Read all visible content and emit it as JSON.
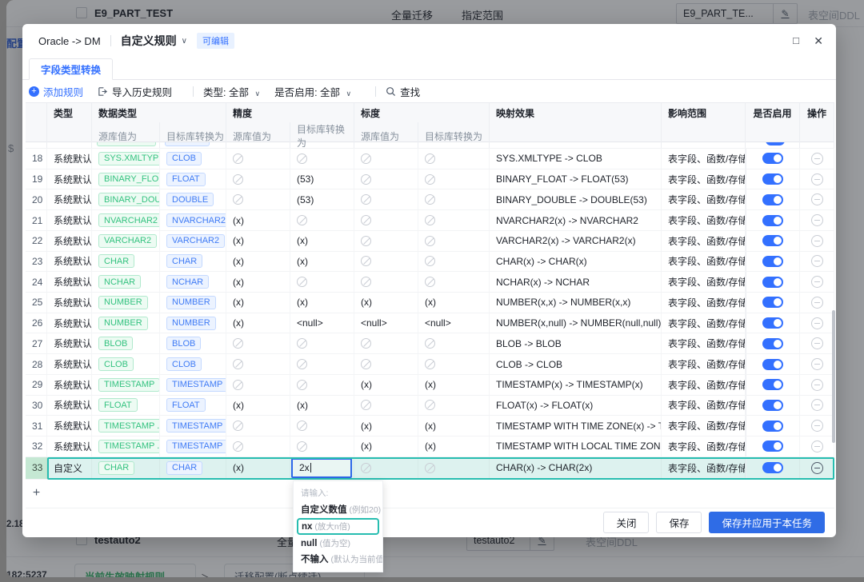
{
  "background": {
    "top_row": {
      "name": "E9_PART_TEST",
      "mode": "全量迁移",
      "range": "指定范围",
      "input_value": "E9_PART_TE...",
      "tablespace": "表空间DDL"
    },
    "left_edge": {
      "config": "配置",
      "icon": "$",
      "ip_partial": "2.182:",
      "ip_bottom": "182:5237"
    },
    "bottom_row": {
      "name": "testauto2",
      "mode": "全量迁移",
      "input_value": "testauto2",
      "tablespace": "表空间DDL"
    },
    "bottom_bar": {
      "active_rules": "当前生效映射规则",
      "caret": "＞",
      "secondary": "迁移配置(断点续迁)"
    }
  },
  "modal": {
    "source_target": "Oracle -> DM",
    "title": "自定义规则",
    "title_caret": "∨",
    "badge": "可编辑",
    "window": {
      "maximize": "□",
      "close": "✕"
    },
    "tab": "字段类型转换",
    "toolbar": {
      "add_rule": "添加规则",
      "import_history": "导入历史规则",
      "type_label": "类型: ",
      "type_value": "全部",
      "enabled_label": "是否启用: ",
      "enabled_value": "全部",
      "search": "查找",
      "caret": "∨"
    },
    "table": {
      "headers": {
        "type": "类型",
        "data_type": "数据类型",
        "precision": "精度",
        "scale": "标度",
        "effect": "映射效果",
        "scope": "影响范围",
        "enabled": "是否启用",
        "operation": "操作",
        "src_sub": "源库值为",
        "dst_sub": "目标库转换为"
      },
      "rows": [
        {
          "no": 18,
          "type": "系统默认",
          "src": "SYS.XMLTYPE",
          "dst": "CLOB",
          "prec_src": null,
          "prec_dst": null,
          "scale_src": null,
          "scale_dst": null,
          "effect": "SYS.XMLTYPE -> CLOB",
          "scope": "表字段、函数/存储过程",
          "enabled": true
        },
        {
          "no": 19,
          "type": "系统默认",
          "src": "BINARY_FLO...",
          "dst": "FLOAT",
          "prec_src": null,
          "prec_dst": "(53)",
          "scale_src": null,
          "scale_dst": null,
          "effect": "BINARY_FLOAT -> FLOAT(53)",
          "scope": "表字段、函数/存储过程",
          "enabled": true
        },
        {
          "no": 20,
          "type": "系统默认",
          "src": "BINARY_DOU...",
          "dst": "DOUBLE",
          "prec_src": null,
          "prec_dst": "(53)",
          "scale_src": null,
          "scale_dst": null,
          "effect": "BINARY_DOUBLE -> DOUBLE(53)",
          "scope": "表字段、函数/存储过程",
          "enabled": true
        },
        {
          "no": 21,
          "type": "系统默认",
          "src": "NVARCHAR2",
          "dst": "NVARCHAR2",
          "prec_src": "(x)",
          "prec_dst": null,
          "scale_src": null,
          "scale_dst": null,
          "effect": "NVARCHAR2(x) -> NVARCHAR2",
          "scope": "表字段、函数/存储过程",
          "enabled": true
        },
        {
          "no": 22,
          "type": "系统默认",
          "src": "VARCHAR2",
          "dst": "VARCHAR2",
          "prec_src": "(x)",
          "prec_dst": "(x)",
          "scale_src": null,
          "scale_dst": null,
          "effect": "VARCHAR2(x) -> VARCHAR2(x)",
          "scope": "表字段、函数/存储过程",
          "enabled": true
        },
        {
          "no": 23,
          "type": "系统默认",
          "src": "CHAR",
          "dst": "CHAR",
          "prec_src": "(x)",
          "prec_dst": "(x)",
          "scale_src": null,
          "scale_dst": null,
          "effect": "CHAR(x) -> CHAR(x)",
          "scope": "表字段、函数/存储过程",
          "enabled": true
        },
        {
          "no": 24,
          "type": "系统默认",
          "src": "NCHAR",
          "dst": "NCHAR",
          "prec_src": "(x)",
          "prec_dst": null,
          "scale_src": null,
          "scale_dst": null,
          "effect": "NCHAR(x) -> NCHAR",
          "scope": "表字段、函数/存储过程",
          "enabled": true
        },
        {
          "no": 25,
          "type": "系统默认",
          "src": "NUMBER",
          "dst": "NUMBER",
          "prec_src": "(x)",
          "prec_dst": "(x)",
          "scale_src": "(x)",
          "scale_dst": "(x)",
          "effect": "NUMBER(x,x) -> NUMBER(x,x)",
          "scope": "表字段、函数/存储过程",
          "enabled": true
        },
        {
          "no": 26,
          "type": "系统默认",
          "src": "NUMBER",
          "dst": "NUMBER",
          "prec_src": "(x)",
          "prec_dst": "<null>",
          "scale_src": "<null>",
          "scale_dst": "<null>",
          "effect": "NUMBER(x,null) -> NUMBER(null,null)",
          "scope": "表字段、函数/存储过程",
          "enabled": true
        },
        {
          "no": 27,
          "type": "系统默认",
          "src": "BLOB",
          "dst": "BLOB",
          "prec_src": null,
          "prec_dst": null,
          "scale_src": null,
          "scale_dst": null,
          "effect": "BLOB -> BLOB",
          "scope": "表字段、函数/存储过程",
          "enabled": true
        },
        {
          "no": 28,
          "type": "系统默认",
          "src": "CLOB",
          "dst": "CLOB",
          "prec_src": null,
          "prec_dst": null,
          "scale_src": null,
          "scale_dst": null,
          "effect": "CLOB -> CLOB",
          "scope": "表字段、函数/存储过程",
          "enabled": true
        },
        {
          "no": 29,
          "type": "系统默认",
          "src": "TIMESTAMP",
          "dst": "TIMESTAMP",
          "prec_src": null,
          "prec_dst": null,
          "scale_src": "(x)",
          "scale_dst": "(x)",
          "effect": "TIMESTAMP(x) -> TIMESTAMP(x)",
          "scope": "表字段、函数/存储过程",
          "enabled": true
        },
        {
          "no": 30,
          "type": "系统默认",
          "src": "FLOAT",
          "dst": "FLOAT",
          "prec_src": "(x)",
          "prec_dst": "(x)",
          "scale_src": null,
          "scale_dst": null,
          "effect": "FLOAT(x) -> FLOAT(x)",
          "scope": "表字段、函数/存储过程",
          "enabled": true
        },
        {
          "no": 31,
          "type": "系统默认",
          "src": "TIMESTAMP ...",
          "dst": "TIMESTAMP ...",
          "prec_src": null,
          "prec_dst": null,
          "scale_src": "(x)",
          "scale_dst": "(x)",
          "effect": "TIMESTAMP WITH TIME ZONE(x) -> TIME...",
          "scope": "表字段、函数/存储过程",
          "enabled": true
        },
        {
          "no": 32,
          "type": "系统默认",
          "src": "TIMESTAMP ...",
          "dst": "TIMESTAMP ...",
          "prec_src": null,
          "prec_dst": null,
          "scale_src": "(x)",
          "scale_dst": "(x)",
          "effect": "TIMESTAMP WITH LOCAL TIME ZONE(x) ...",
          "scope": "表字段、函数/存储过程",
          "enabled": true
        },
        {
          "no": 33,
          "type": "自定义",
          "src": "CHAR",
          "dst": "CHAR",
          "prec_src": "(x)",
          "prec_dst": {
            "input": "2x"
          },
          "scale_src": null,
          "scale_dst": null,
          "effect": "CHAR(x) -> CHAR(2x)",
          "scope": "表字段、函数/存储过程",
          "enabled": true,
          "custom": true
        }
      ],
      "add_row_label": "+"
    },
    "dropdown": {
      "header": "请输入:",
      "items": [
        {
          "main": "自定义数值",
          "hint": "(例如20)",
          "selected": false
        },
        {
          "main": "nx",
          "hint": "(放大n倍)",
          "selected": true
        },
        {
          "main": "null",
          "hint": "(值为空)",
          "selected": false
        },
        {
          "main": "不输入",
          "hint": "(默认为当前值)",
          "selected": false
        }
      ]
    },
    "footer": {
      "close": "关闭",
      "save": "保存",
      "save_apply": "保存并应用于本任务"
    }
  },
  "colors": {
    "accent_blue": "#3370ff",
    "primary_button": "#2f6ce6",
    "highlight_teal": "#27bdb0",
    "tag_green": "#33c27f",
    "tag_blue": "#3f7bf5"
  }
}
